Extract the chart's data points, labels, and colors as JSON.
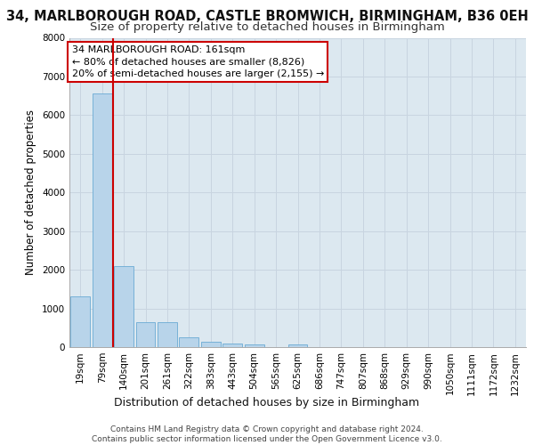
{
  "title": "34, MARLBOROUGH ROAD, CASTLE BROMWICH, BIRMINGHAM, B36 0EH",
  "subtitle": "Size of property relative to detached houses in Birmingham",
  "xlabel": "Distribution of detached houses by size in Birmingham",
  "ylabel": "Number of detached properties",
  "footer_line1": "Contains HM Land Registry data © Crown copyright and database right 2024.",
  "footer_line2": "Contains public sector information licensed under the Open Government Licence v3.0.",
  "bar_labels": [
    "19sqm",
    "79sqm",
    "140sqm",
    "201sqm",
    "261sqm",
    "322sqm",
    "383sqm",
    "443sqm",
    "504sqm",
    "565sqm",
    "625sqm",
    "686sqm",
    "747sqm",
    "807sqm",
    "868sqm",
    "929sqm",
    "990sqm",
    "1050sqm",
    "1111sqm",
    "1172sqm",
    "1232sqm"
  ],
  "bar_values": [
    1310,
    6570,
    2090,
    650,
    650,
    245,
    135,
    95,
    60,
    0,
    60,
    0,
    0,
    0,
    0,
    0,
    0,
    0,
    0,
    0,
    0
  ],
  "bar_color": "#b8d4ea",
  "bar_edge_color": "#6aaad4",
  "grid_color": "#c8d4e0",
  "background_color": "#dce8f0",
  "vline_bar_idx": 2,
  "vline_color": "#cc0000",
  "annotation_line1": "34 MARLBOROUGH ROAD: 161sqm",
  "annotation_line2": "← 80% of detached houses are smaller (8,826)",
  "annotation_line3": "20% of semi-detached houses are larger (2,155) →",
  "annotation_box_edgecolor": "#cc0000",
  "ylim": [
    0,
    8000
  ],
  "yticks": [
    0,
    1000,
    2000,
    3000,
    4000,
    5000,
    6000,
    7000,
    8000
  ],
  "title_fontsize": 10.5,
  "subtitle_fontsize": 9.5,
  "xlabel_fontsize": 9,
  "ylabel_fontsize": 8.5,
  "tick_fontsize": 7.5,
  "annotation_fontsize": 8,
  "footer_fontsize": 6.5
}
